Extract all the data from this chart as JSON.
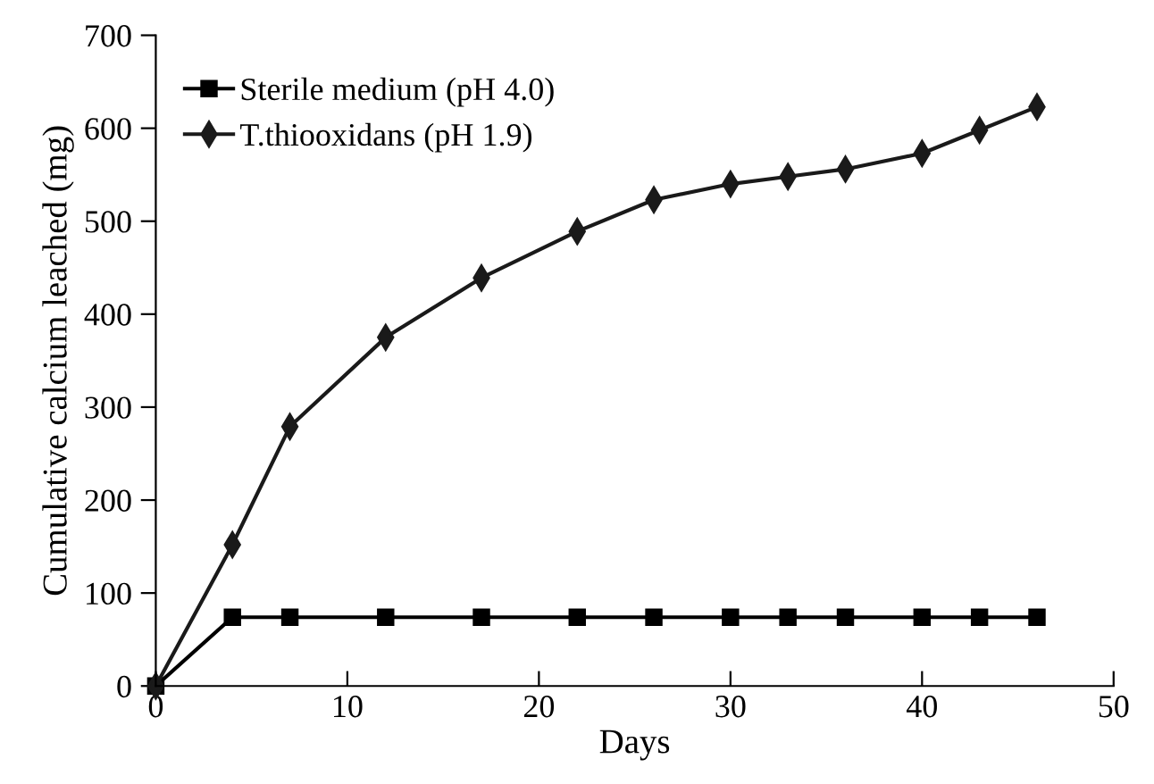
{
  "chart_data": {
    "type": "line",
    "xlabel": "Days",
    "ylabel": "Cumulative calcium leached (mg)",
    "x": [
      0,
      4,
      7,
      12,
      17,
      22,
      26,
      30,
      33,
      36,
      40,
      43,
      46
    ],
    "series": [
      {
        "name": "Sterile medium (pH 4.0)",
        "color": "#000000",
        "marker": "square",
        "values": [
          0,
          74,
          74,
          74,
          74,
          74,
          74,
          74,
          74,
          74,
          74,
          74,
          74
        ]
      },
      {
        "name": "T.thiooxidans (pH 1.9)",
        "color": "#1a1a1a",
        "marker": "diamond",
        "values": [
          0,
          152,
          279,
          375,
          439,
          489,
          523,
          540,
          548,
          556,
          573,
          598,
          623
        ]
      }
    ],
    "xlim": [
      0,
      50
    ],
    "xticks": [
      0,
      10,
      20,
      30,
      40,
      50
    ],
    "ylim": [
      0,
      700
    ],
    "yticks": [
      0,
      100,
      200,
      300,
      400,
      500,
      600,
      700
    ],
    "grid": false,
    "legend": "top left",
    "line_style": "solid"
  }
}
